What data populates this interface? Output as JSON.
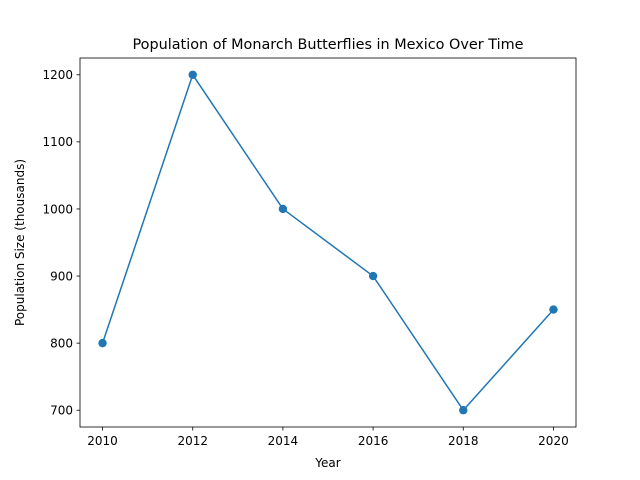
{
  "chart_data": {
    "type": "line",
    "title": "Population of Monarch Butterflies in Mexico Over Time",
    "xlabel": "Year",
    "ylabel": "Population Size (thousands)",
    "x": [
      2010,
      2012,
      2014,
      2016,
      2018,
      2020
    ],
    "series": [
      {
        "values": [
          800,
          1200,
          1000,
          900,
          700,
          850
        ],
        "color": "#1f77b4",
        "marker": "circle"
      }
    ],
    "xlim": [
      2009.5,
      2020.5
    ],
    "ylim": [
      675,
      1225
    ],
    "xticks": [
      2010,
      2012,
      2014,
      2016,
      2018,
      2020
    ],
    "yticks": [
      700,
      800,
      900,
      1000,
      1100,
      1200
    ],
    "grid": false,
    "legend": "none"
  }
}
